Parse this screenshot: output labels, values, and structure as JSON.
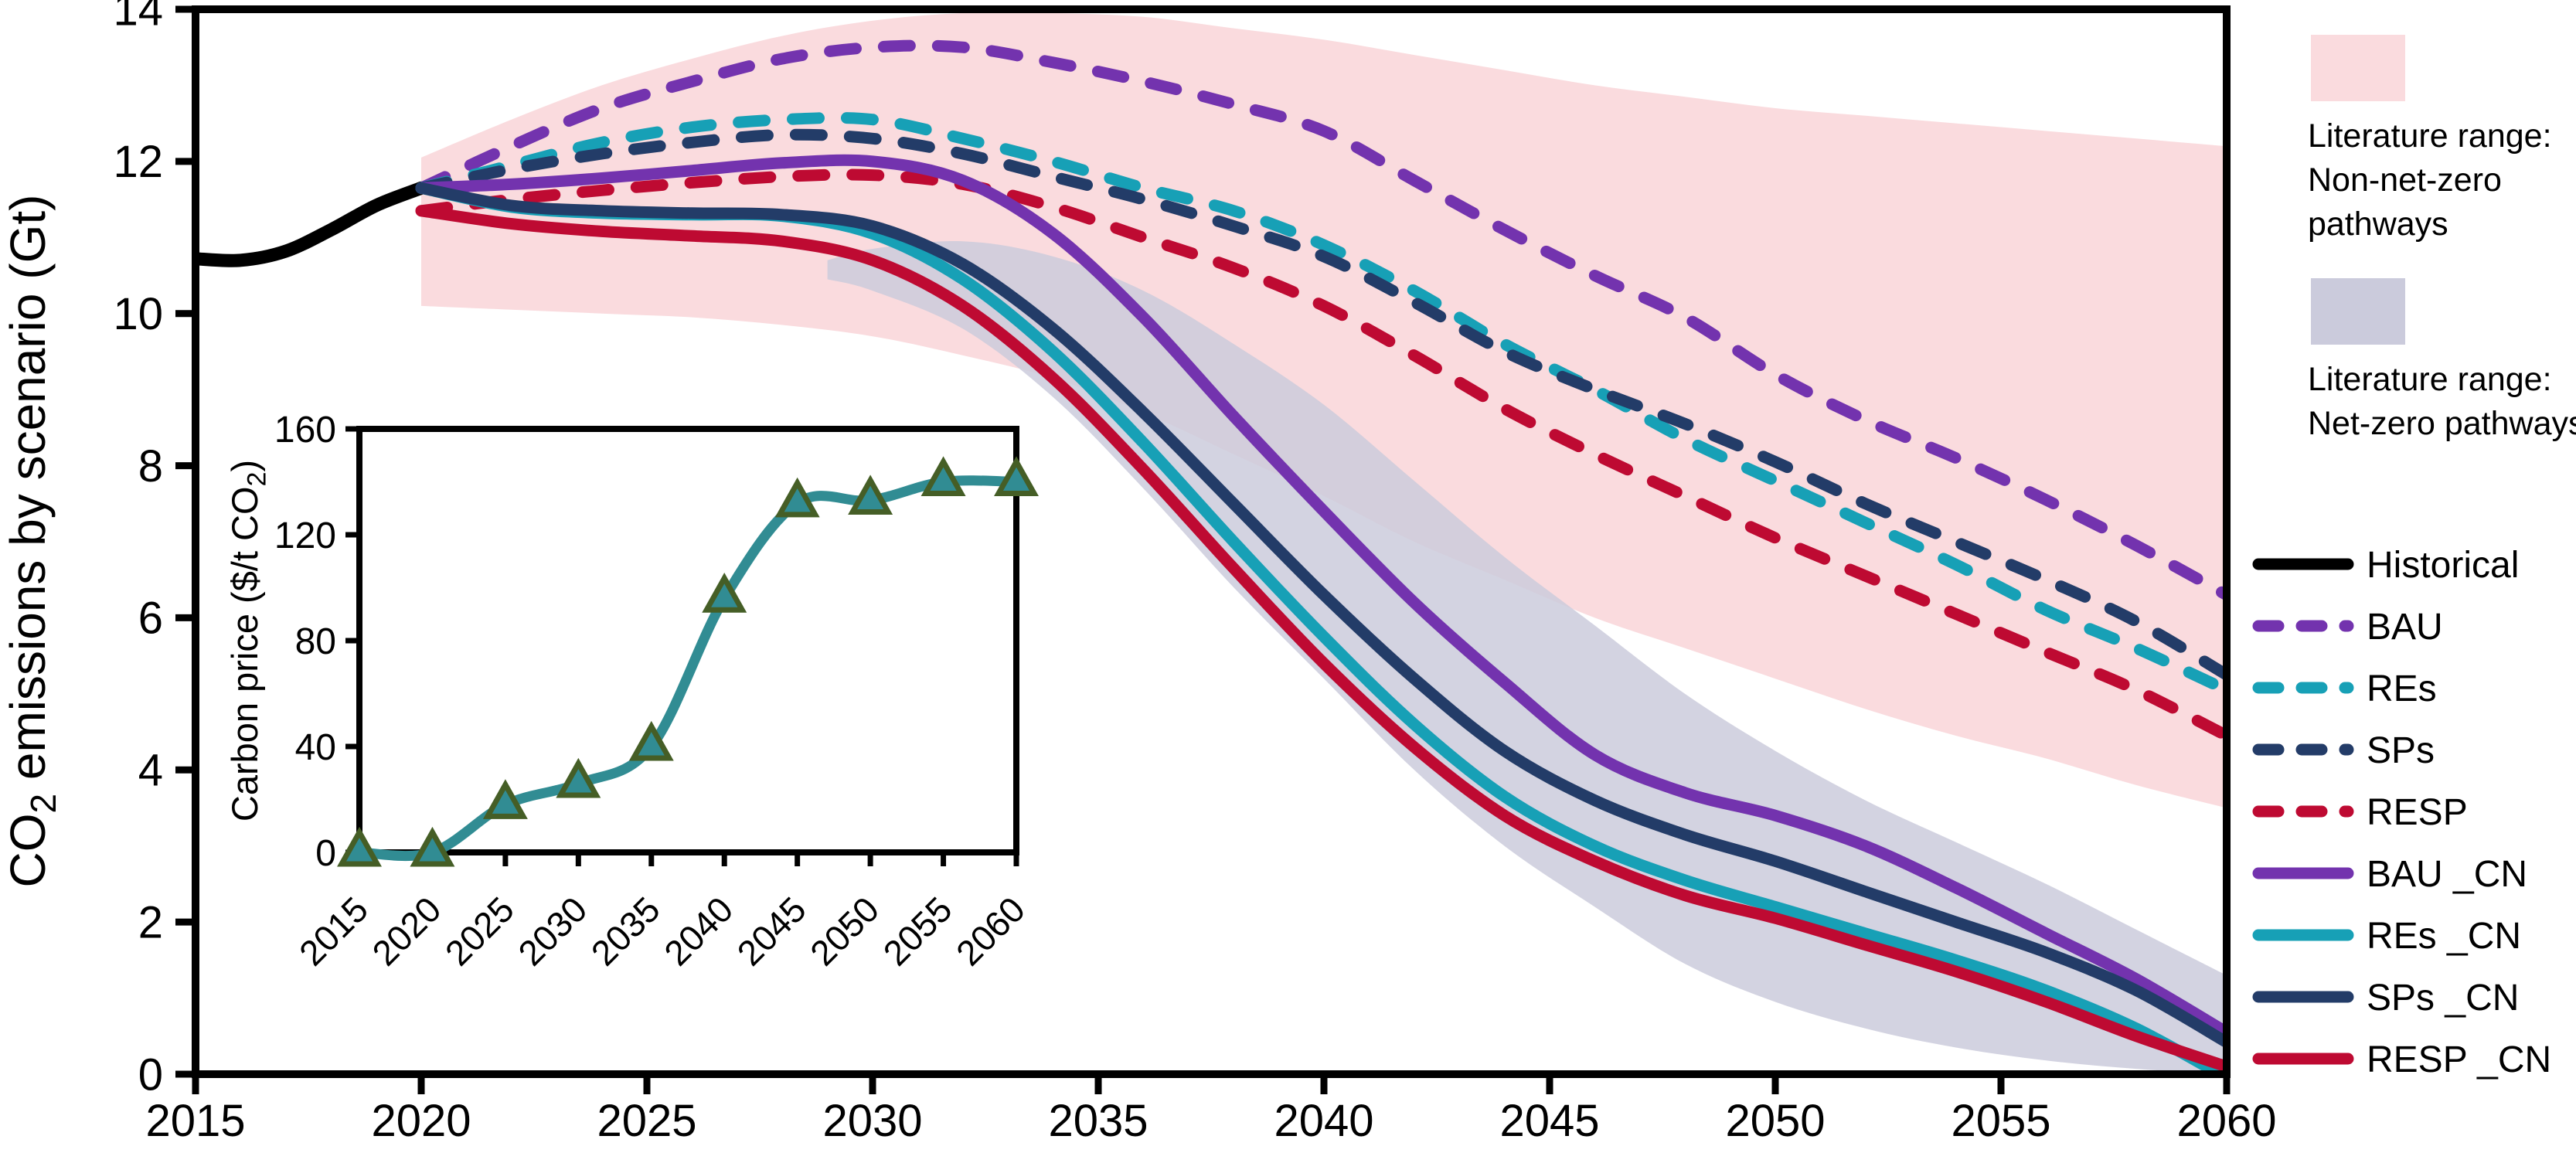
{
  "figure_background": "#ffffff",
  "axes": {
    "main_ylabel": {
      "pre": "CO",
      "sub": "2",
      "post": " emissions by scenario (Gt)"
    },
    "inset_ylabel": {
      "pre": "Carbon price ($/t CO",
      "sub": "2",
      "post": ")"
    }
  },
  "chart_data": [
    {
      "id": "main",
      "type": "line",
      "xlabel": "",
      "ylabel": "CO2 emissions by scenario (Gt)",
      "xlim": [
        2015,
        2060
      ],
      "ylim": [
        0,
        14
      ],
      "x_ticks": [
        2015,
        2020,
        2025,
        2030,
        2035,
        2040,
        2045,
        2050,
        2055,
        2060
      ],
      "y_ticks": [
        0,
        2,
        4,
        6,
        8,
        10,
        12,
        14
      ],
      "grid": false,
      "bands": [
        {
          "name": "literature-range-non-net-zero",
          "label_lines": [
            "Literature range:",
            "Non-net-zero",
            "pathways"
          ],
          "color": "#FADBDE",
          "opacity": 1,
          "years": [
            2020,
            2022,
            2024,
            2026,
            2028,
            2030,
            2032,
            2034,
            2036,
            2038,
            2040,
            2042,
            2044,
            2046,
            2048,
            2050,
            2052,
            2054,
            2056,
            2058,
            2060
          ],
          "top": [
            12.05,
            12.55,
            13.0,
            13.35,
            13.65,
            13.85,
            13.95,
            13.95,
            13.9,
            13.75,
            13.6,
            13.4,
            13.2,
            13.0,
            12.85,
            12.7,
            12.6,
            12.5,
            12.4,
            12.3,
            12.2
          ],
          "bottom": [
            10.1,
            10.05,
            10.0,
            9.95,
            9.85,
            9.7,
            9.45,
            9.15,
            8.7,
            8.15,
            7.6,
            7.0,
            6.5,
            6.0,
            5.6,
            5.2,
            4.8,
            4.45,
            4.15,
            3.8,
            3.5
          ]
        },
        {
          "name": "literature-range-net-zero",
          "label_lines": [
            "Literature range:",
            "Net-zero pathways"
          ],
          "color": "#CBCBDC",
          "opacity": 0.85,
          "years": [
            2029,
            2030,
            2032,
            2034,
            2036,
            2038,
            2040,
            2042,
            2044,
            2046,
            2048,
            2050,
            2052,
            2054,
            2056,
            2058,
            2060
          ],
          "top": [
            10.7,
            10.85,
            10.95,
            10.75,
            10.3,
            9.6,
            8.8,
            7.8,
            6.8,
            5.9,
            5.0,
            4.25,
            3.6,
            3.05,
            2.5,
            1.9,
            1.3
          ],
          "bottom": [
            10.45,
            10.3,
            9.8,
            8.9,
            7.7,
            6.4,
            5.2,
            4.0,
            3.0,
            2.2,
            1.45,
            0.95,
            0.6,
            0.35,
            0.18,
            0.07,
            0.0
          ]
        }
      ],
      "series": [
        {
          "name": "Historical",
          "color": "#000000",
          "dash": false,
          "width": 17,
          "years": [
            2015,
            2016,
            2017,
            2018,
            2019,
            2020
          ],
          "values": [
            10.72,
            10.7,
            10.82,
            11.1,
            11.42,
            11.65
          ]
        },
        {
          "name": "BAU",
          "color": "#7333AE",
          "dash": true,
          "width": 15,
          "years": [
            2020,
            2022,
            2024,
            2026,
            2028,
            2030,
            2032,
            2034,
            2036,
            2038,
            2040,
            2042,
            2044,
            2046,
            2048,
            2050,
            2052,
            2054,
            2056,
            2058,
            2060
          ],
          "values": [
            11.65,
            12.2,
            12.7,
            13.05,
            13.35,
            13.5,
            13.5,
            13.3,
            13.05,
            12.75,
            12.4,
            11.75,
            11.1,
            10.5,
            9.95,
            9.2,
            8.6,
            8.1,
            7.55,
            6.95,
            6.3
          ]
        },
        {
          "name": "REs",
          "color": "#17A0B6",
          "dash": true,
          "width": 15,
          "years": [
            2020,
            2022,
            2024,
            2026,
            2028,
            2030,
            2032,
            2034,
            2036,
            2038,
            2040,
            2042,
            2044,
            2046,
            2048,
            2050,
            2052,
            2054,
            2056,
            2058,
            2060
          ],
          "values": [
            11.65,
            11.95,
            12.25,
            12.45,
            12.55,
            12.55,
            12.3,
            12.0,
            11.65,
            11.35,
            10.9,
            10.3,
            9.6,
            9.0,
            8.35,
            7.8,
            7.25,
            6.7,
            6.1,
            5.6,
            5.05
          ]
        },
        {
          "name": "SPs",
          "color": "#233C68",
          "dash": true,
          "width": 15,
          "years": [
            2020,
            2022,
            2024,
            2026,
            2028,
            2030,
            2032,
            2034,
            2036,
            2038,
            2040,
            2042,
            2044,
            2046,
            2048,
            2050,
            2052,
            2054,
            2056,
            2058,
            2060
          ],
          "values": [
            11.65,
            11.9,
            12.1,
            12.25,
            12.35,
            12.3,
            12.1,
            11.8,
            11.5,
            11.15,
            10.75,
            10.15,
            9.5,
            9.0,
            8.55,
            8.05,
            7.5,
            7.0,
            6.5,
            5.95,
            5.25
          ]
        },
        {
          "name": "RESP",
          "color": "#BE0A32",
          "dash": true,
          "width": 15,
          "years": [
            2020,
            2022,
            2024,
            2026,
            2028,
            2030,
            2032,
            2034,
            2036,
            2038,
            2040,
            2042,
            2044,
            2046,
            2048,
            2050,
            2052,
            2054,
            2056,
            2058,
            2060
          ],
          "values": [
            11.35,
            11.5,
            11.62,
            11.72,
            11.8,
            11.82,
            11.7,
            11.4,
            11.0,
            10.6,
            10.1,
            9.45,
            8.75,
            8.15,
            7.6,
            7.05,
            6.55,
            6.05,
            5.55,
            5.05,
            4.45
          ]
        },
        {
          "name": "BAU _CN",
          "color": "#7333AE",
          "dash": false,
          "width": 15,
          "years": [
            2020,
            2022,
            2024,
            2026,
            2028,
            2030,
            2032,
            2034,
            2036,
            2038,
            2040,
            2042,
            2044,
            2046,
            2048,
            2050,
            2052,
            2054,
            2056,
            2058,
            2060
          ],
          "values": [
            11.65,
            11.7,
            11.78,
            11.88,
            11.98,
            12.0,
            11.75,
            11.05,
            9.95,
            8.65,
            7.4,
            6.2,
            5.15,
            4.2,
            3.7,
            3.4,
            3.0,
            2.45,
            1.85,
            1.25,
            0.55
          ]
        },
        {
          "name": "REs _CN",
          "color": "#17A0B6",
          "dash": false,
          "width": 15,
          "years": [
            2020,
            2022,
            2024,
            2026,
            2028,
            2030,
            2032,
            2034,
            2036,
            2038,
            2040,
            2042,
            2044,
            2046,
            2048,
            2050,
            2052,
            2054,
            2056,
            2058,
            2060
          ],
          "values": [
            11.65,
            11.4,
            11.32,
            11.3,
            11.28,
            11.05,
            10.45,
            9.5,
            8.3,
            7.0,
            5.75,
            4.6,
            3.65,
            3.0,
            2.55,
            2.2,
            1.85,
            1.5,
            1.1,
            0.6,
            -0.05
          ]
        },
        {
          "name": "SPs _CN",
          "color": "#233C68",
          "dash": false,
          "width": 15,
          "years": [
            2020,
            2022,
            2024,
            2026,
            2028,
            2030,
            2032,
            2034,
            2036,
            2038,
            2040,
            2042,
            2044,
            2046,
            2048,
            2050,
            2052,
            2054,
            2056,
            2058,
            2060
          ],
          "values": [
            11.65,
            11.42,
            11.35,
            11.32,
            11.3,
            11.15,
            10.65,
            9.8,
            8.7,
            7.5,
            6.3,
            5.2,
            4.25,
            3.6,
            3.15,
            2.8,
            2.4,
            2.0,
            1.6,
            1.1,
            0.42
          ]
        },
        {
          "name": "RESP _CN",
          "color": "#BE0A32",
          "dash": false,
          "width": 15,
          "years": [
            2020,
            2022,
            2024,
            2026,
            2028,
            2030,
            2032,
            2034,
            2036,
            2038,
            2040,
            2042,
            2044,
            2046,
            2048,
            2050,
            2052,
            2054,
            2056,
            2058,
            2060
          ],
          "values": [
            11.35,
            11.18,
            11.08,
            11.02,
            10.95,
            10.7,
            10.1,
            9.15,
            7.95,
            6.65,
            5.4,
            4.3,
            3.4,
            2.8,
            2.35,
            2.05,
            1.7,
            1.35,
            0.95,
            0.5,
            0.1
          ]
        }
      ]
    },
    {
      "id": "inset",
      "type": "line",
      "ylabel": "Carbon price ($/t CO2)",
      "x": [
        2015,
        2020,
        2025,
        2030,
        2035,
        2040,
        2045,
        2050,
        2055,
        2060
      ],
      "values": [
        0,
        0,
        18,
        26,
        40,
        96,
        132,
        133,
        140,
        140
      ],
      "ylim": [
        0,
        160
      ],
      "y_ticks": [
        0,
        40,
        80,
        120,
        160
      ],
      "color": "#318C93",
      "line_width": 13,
      "marker": "triangle-up",
      "marker_fill": "#318C93",
      "marker_stroke": "#455E26"
    }
  ]
}
